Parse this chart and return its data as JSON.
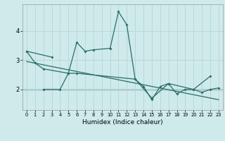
{
  "xlabel": "Humidex (Indice chaleur)",
  "x_values": [
    0,
    1,
    2,
    3,
    4,
    5,
    6,
    7,
    8,
    9,
    10,
    11,
    12,
    13,
    14,
    15,
    16,
    17,
    18,
    19,
    20,
    21,
    22,
    23
  ],
  "line1_y": [
    3.3,
    2.9,
    2.7,
    null,
    null,
    2.55,
    3.6,
    3.3,
    3.35,
    null,
    3.4,
    4.65,
    4.2,
    2.35,
    null,
    1.7,
    null,
    2.2,
    null,
    null,
    2.0,
    null,
    2.45,
    null
  ],
  "line2_y": [
    null,
    null,
    2.0,
    null,
    2.0,
    2.55,
    2.55,
    null,
    null,
    null,
    null,
    null,
    null,
    2.35,
    2.1,
    1.65,
    2.1,
    2.2,
    1.85,
    2.0,
    2.0,
    1.9,
    2.0,
    2.05
  ],
  "line3_start_x": 0,
  "line3_start_y": 3.3,
  "line3_end_x": 3,
  "line3_end_y": 3.1,
  "trend_start_x": 0,
  "trend_start_y": 2.95,
  "trend_end_x": 23,
  "trend_end_y": 1.65,
  "hline_y": 2.0,
  "bg_color": "#ceeaea",
  "line_color": "#2a6e65",
  "grid_color": "#b8d4d4",
  "yticks": [
    2,
    3,
    4
  ],
  "ylim": [
    1.3,
    4.9
  ],
  "xlim": [
    -0.5,
    23.5
  ]
}
